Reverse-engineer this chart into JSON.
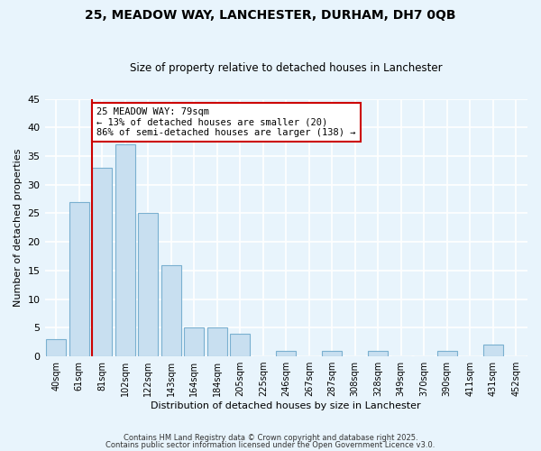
{
  "title": "25, MEADOW WAY, LANCHESTER, DURHAM, DH7 0QB",
  "subtitle": "Size of property relative to detached houses in Lanchester",
  "xlabel": "Distribution of detached houses by size in Lanchester",
  "ylabel": "Number of detached properties",
  "bar_labels": [
    "40sqm",
    "61sqm",
    "81sqm",
    "102sqm",
    "122sqm",
    "143sqm",
    "164sqm",
    "184sqm",
    "205sqm",
    "225sqm",
    "246sqm",
    "267sqm",
    "287sqm",
    "308sqm",
    "328sqm",
    "349sqm",
    "370sqm",
    "390sqm",
    "411sqm",
    "431sqm",
    "452sqm"
  ],
  "bar_values": [
    3,
    27,
    33,
    37,
    25,
    16,
    5,
    5,
    4,
    0,
    1,
    0,
    1,
    0,
    1,
    0,
    0,
    1,
    0,
    2,
    0
  ],
  "bar_color": "#c8dff0",
  "bar_edge_color": "#7ab0d0",
  "highlight_color": "#cc0000",
  "highlight_index": 2,
  "ylim": [
    0,
    45
  ],
  "yticks": [
    0,
    5,
    10,
    15,
    20,
    25,
    30,
    35,
    40,
    45
  ],
  "annotation_title": "25 MEADOW WAY: 79sqm",
  "annotation_line1": "← 13% of detached houses are smaller (20)",
  "annotation_line2": "86% of semi-detached houses are larger (138) →",
  "annotation_box_color": "#ffffff",
  "annotation_box_edge": "#cc0000",
  "footer1": "Contains HM Land Registry data © Crown copyright and database right 2025.",
  "footer2": "Contains public sector information licensed under the Open Government Licence v3.0.",
  "background_color": "#e8f4fc",
  "grid_color": "#ffffff"
}
